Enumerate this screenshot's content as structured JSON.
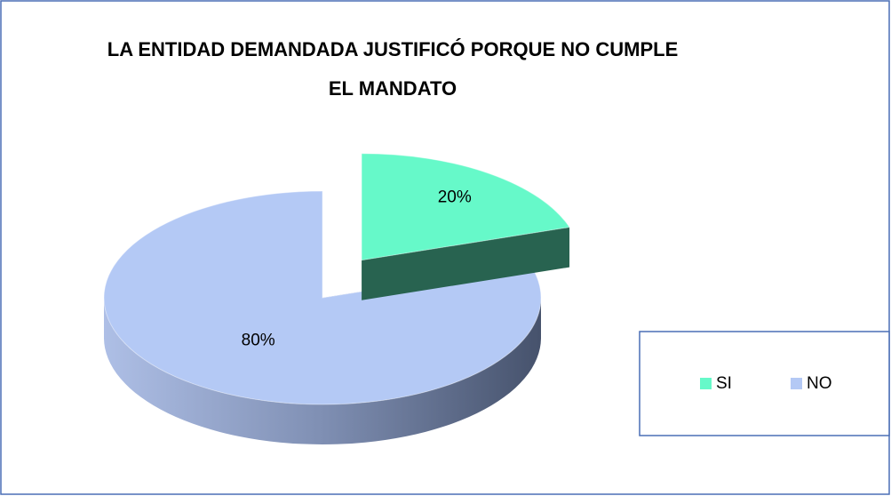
{
  "chart_data": {
    "type": "pie",
    "title": [
      "LA ENTIDAD DEMANDADA JUSTIFICÓ PORQUE NO CUMPLE",
      "EL MANDATO"
    ],
    "categories": [
      "SI",
      "NO"
    ],
    "values": [
      20,
      80
    ],
    "value_labels": [
      "20%",
      "80%"
    ],
    "colors": [
      "#66f9c9",
      "#b4c9f5"
    ],
    "legend": "right"
  }
}
